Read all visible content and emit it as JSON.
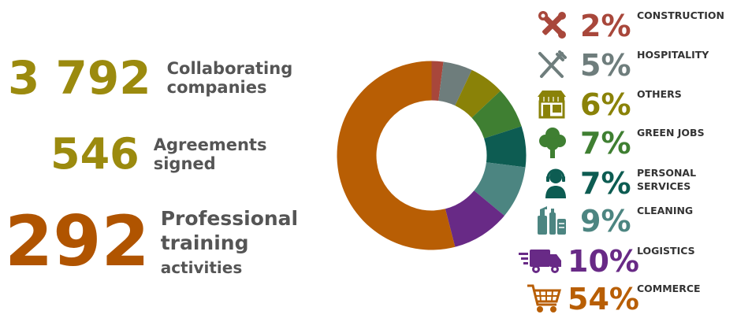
{
  "stats": {
    "companies": {
      "number": "3 792",
      "label_1": "Collaborating",
      "label_2": "companies",
      "color": "#9b8a0e"
    },
    "agreements": {
      "number": "546",
      "label_1": "Agreements",
      "label_2": "signed",
      "color": "#9b8a0e"
    },
    "training": {
      "number": "292",
      "label_1": "Professional",
      "label_2": "training",
      "label_3": "activities",
      "color": "#b05400"
    }
  },
  "chart_data": {
    "type": "pie",
    "donut": true,
    "categories": [
      "CONSTRUCTION",
      "HOSPITALITY",
      "OTHERS",
      "GREEN JOBS",
      "PERSONAL SERVICES",
      "CLEANING",
      "LOGISTICS",
      "COMMERCE"
    ],
    "values": [
      2,
      5,
      6,
      7,
      7,
      9,
      10,
      54
    ],
    "labels": [
      "2%",
      "5%",
      "6%",
      "7%",
      "7%",
      "9%",
      "10%",
      "54%"
    ],
    "colors": [
      "#a8473b",
      "#6e7d7c",
      "#8a8208",
      "#3f7f32",
      "#0d5c52",
      "#4c8581",
      "#682a86",
      "#b85e04"
    ],
    "icons": [
      "tools-icon",
      "fork-knife-icon",
      "shop-icon",
      "tree-icon",
      "person-headset-icon",
      "cleaning-supplies-icon",
      "truck-icon",
      "shopping-cart-icon"
    ]
  }
}
